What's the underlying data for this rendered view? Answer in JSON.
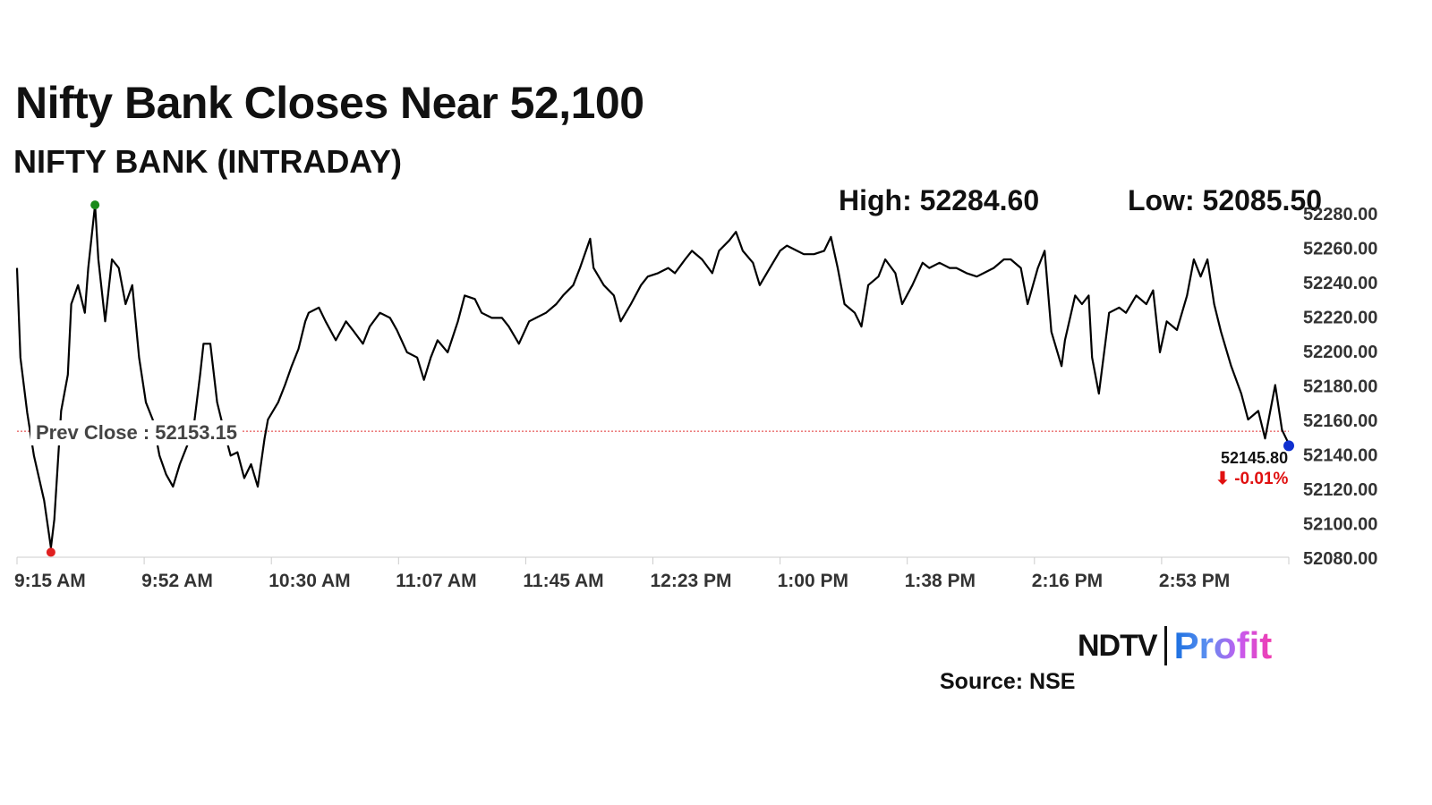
{
  "chart_data": {
    "type": "line",
    "title": "Nifty Bank Closes Near 52,100",
    "subtitle": "NIFTY BANK (INTRADAY)",
    "high_label": "High: 52284.60",
    "low_label": "Low: 52085.50",
    "high": 52284.6,
    "low": 52085.5,
    "prev_close": 52153.15,
    "prev_close_label": "Prev Close : 52153.15",
    "last_value_label": "52145.80",
    "change_label": "⬇ -0.01%",
    "ylim": [
      52080,
      52280
    ],
    "yticks": [
      "52080.00",
      "52100.00",
      "52120.00",
      "52140.00",
      "52160.00",
      "52180.00",
      "52200.00",
      "52220.00",
      "52240.00",
      "52260.00",
      "52280.00"
    ],
    "xlim_minutes_after_open": [
      0,
      375
    ],
    "xticks": [
      "9:15 AM",
      "9:52 AM",
      "10:30 AM",
      "11:07 AM",
      "11:45 AM",
      "12:23 PM",
      "1:00 PM",
      "1:38 PM",
      "2:16 PM",
      "2:53 PM"
    ],
    "x_minutes": [
      0,
      1,
      3,
      5,
      8,
      10,
      11,
      13,
      15,
      16,
      18,
      20,
      21,
      23,
      24,
      26,
      28,
      30,
      32,
      34,
      36,
      38,
      40,
      42,
      44,
      46,
      48,
      50,
      52,
      54,
      55,
      57,
      59,
      61,
      63,
      65,
      67,
      69,
      71,
      73,
      74,
      77,
      79,
      81,
      83,
      85,
      86,
      89,
      91,
      94,
      97,
      99,
      102,
      104,
      107,
      110,
      112,
      115,
      118,
      120,
      122,
      124,
      127,
      130,
      132,
      135,
      137,
      140,
      143,
      145,
      148,
      151,
      153,
      156,
      159,
      161,
      164,
      166,
      169,
      170,
      173,
      176,
      178,
      181,
      184,
      186,
      189,
      192,
      194,
      197,
      199,
      202,
      205,
      207,
      210,
      212,
      214,
      217,
      219,
      222,
      225,
      227,
      230,
      232,
      235,
      238,
      240,
      242,
      244,
      247,
      249,
      251,
      254,
      256,
      259,
      261,
      264,
      267,
      269,
      272,
      275,
      277,
      280,
      283,
      285,
      288,
      291,
      293,
      296,
      298,
      301,
      303,
      305,
      308,
      309,
      312,
      314,
      316,
      317,
      319,
      321,
      322,
      325,
      327,
      330,
      333,
      335,
      337,
      339,
      342,
      345,
      347,
      349,
      351,
      353,
      355,
      358,
      361,
      363,
      366,
      368,
      371,
      373,
      375
    ],
    "values": [
      52248,
      52196,
      52164,
      52139,
      52113,
      52085.5,
      52102,
      52165,
      52186,
      52227,
      52238,
      52222,
      52248,
      52284.6,
      52253,
      52217,
      52253,
      52248,
      52227,
      52238,
      52196,
      52170,
      52160,
      52139,
      52128,
      52121,
      52134,
      52144,
      52154,
      52186,
      52204,
      52204,
      52170,
      52154,
      52139,
      52141,
      52126,
      52134,
      52121,
      52149,
      52160,
      52170,
      52180,
      52191,
      52201,
      52217,
      52222,
      52225,
      52217,
      52206,
      52217,
      52212,
      52204,
      52214,
      52222,
      52219,
      52212,
      52199,
      52196,
      52183,
      52196,
      52206,
      52199,
      52217,
      52232,
      52230,
      52222,
      52219,
      52219,
      52214,
      52204,
      52217,
      52219,
      52222,
      52227,
      52232,
      52238,
      52248,
      52265,
      52248,
      52238,
      52232,
      52217,
      52227,
      52238,
      52243,
      52245,
      52248,
      52245,
      52253,
      52258,
      52253,
      52245,
      52258,
      52264,
      52269,
      52258,
      52251,
      52238,
      52248,
      52258,
      52261,
      52258,
      52256,
      52256,
      52258,
      52266,
      52248,
      52227,
      52222,
      52214,
      52238,
      52243,
      52253,
      52245,
      52227,
      52238,
      52251,
      52248,
      52251,
      52248,
      52248,
      52245,
      52243,
      52245,
      52248,
      52253,
      52253,
      52248,
      52227,
      52248,
      52258,
      52211,
      52191,
      52206,
      52232,
      52227,
      52232,
      52196,
      52175,
      52206,
      52222,
      52225,
      52222,
      52232,
      52227,
      52235,
      52199,
      52217,
      52212,
      52232,
      52253,
      52243,
      52253,
      52227,
      52211,
      52191,
      52175,
      52160,
      52165,
      52149,
      52180,
      52154,
      52145.8
    ],
    "colors": {
      "line": "#000000",
      "prev_close": "#e03030",
      "high_marker": "#1a8a1a",
      "low_marker": "#e02020",
      "last_marker": "#1030d0"
    },
    "grid": false
  },
  "branding": {
    "logo_left": "NDTV",
    "logo_right": "Profit",
    "source": "Source: NSE"
  }
}
